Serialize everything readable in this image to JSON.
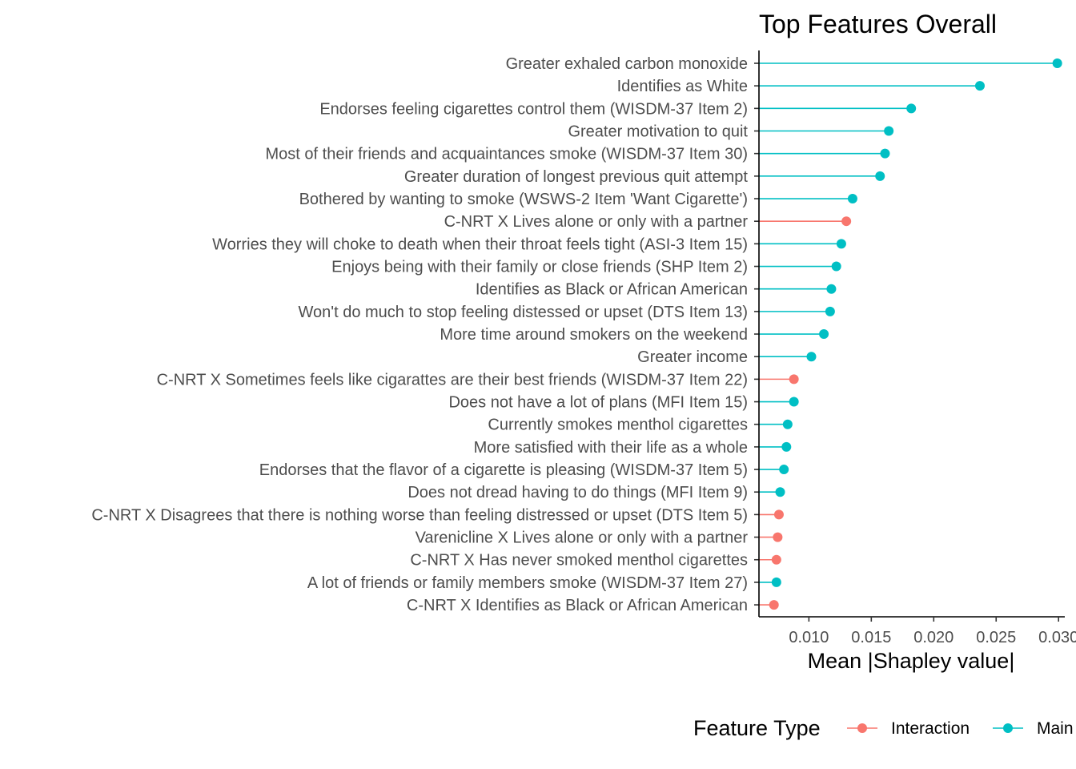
{
  "chart_data": {
    "type": "lollipop",
    "title": "Top Features Overall",
    "xlabel": "Mean |Shapley value|",
    "ylabel": "",
    "xlim": [
      0.006,
      0.0305
    ],
    "xticks": [
      0.01,
      0.015,
      0.02,
      0.025,
      0.03
    ],
    "xtick_labels": [
      "0.010",
      "0.015",
      "0.020",
      "0.025",
      "0.030"
    ],
    "grid": false,
    "legend": {
      "title": "Feature Type",
      "position": "bottom",
      "entries": [
        {
          "name": "Interaction",
          "color": "#F8766D"
        },
        {
          "name": "Main",
          "color": "#00BFC4"
        }
      ]
    },
    "colors": {
      "Interaction": "#F8766D",
      "Main": "#00BFC4"
    },
    "features": [
      {
        "label": "Greater exhaled carbon monoxide",
        "value": 0.0299,
        "type": "Main"
      },
      {
        "label": "Identifies as White",
        "value": 0.0237,
        "type": "Main"
      },
      {
        "label": "Endorses feeling cigarettes control them (WISDM-37 Item 2)",
        "value": 0.0182,
        "type": "Main"
      },
      {
        "label": "Greater motivation to quit",
        "value": 0.0164,
        "type": "Main"
      },
      {
        "label": "Most of their friends and acquaintances smoke (WISDM-37 Item 30)",
        "value": 0.0161,
        "type": "Main"
      },
      {
        "label": "Greater duration of longest previous quit attempt",
        "value": 0.0157,
        "type": "Main"
      },
      {
        "label": "Bothered by wanting to smoke (WSWS-2 Item 'Want Cigarette')",
        "value": 0.0135,
        "type": "Main"
      },
      {
        "label": "C-NRT X Lives alone or only with a partner",
        "value": 0.013,
        "type": "Interaction"
      },
      {
        "label": "Worries they will choke to death when their throat feels tight (ASI-3 Item 15)",
        "value": 0.0126,
        "type": "Main"
      },
      {
        "label": "Enjoys being with their family or close friends (SHP Item 2)",
        "value": 0.0122,
        "type": "Main"
      },
      {
        "label": "Identifies as Black or African American",
        "value": 0.0118,
        "type": "Main"
      },
      {
        "label": "Won't do much to stop feeling distessed or upset (DTS Item 13)",
        "value": 0.0117,
        "type": "Main"
      },
      {
        "label": "More time around smokers on the weekend",
        "value": 0.0112,
        "type": "Main"
      },
      {
        "label": "Greater income",
        "value": 0.0102,
        "type": "Main"
      },
      {
        "label": "C-NRT X Sometimes feels like cigarattes are their best friends (WISDM-37 Item 22)",
        "value": 0.0088,
        "type": "Interaction"
      },
      {
        "label": "Does not have a lot of plans (MFI Item 15)",
        "value": 0.0088,
        "type": "Main"
      },
      {
        "label": "Currently smokes menthol cigarettes",
        "value": 0.0083,
        "type": "Main"
      },
      {
        "label": "More satisfied with their life as a whole",
        "value": 0.0082,
        "type": "Main"
      },
      {
        "label": "Endorses that the flavor of a cigarette is pleasing (WISDM-37 Item 5)",
        "value": 0.008,
        "type": "Main"
      },
      {
        "label": "Does not dread having to do things (MFI Item 9)",
        "value": 0.0077,
        "type": "Main"
      },
      {
        "label": "C-NRT X Disagrees that there is nothing worse than feeling distressed or upset (DTS Item 5)",
        "value": 0.0076,
        "type": "Interaction"
      },
      {
        "label": "Varenicline X Lives alone or only with a partner",
        "value": 0.0075,
        "type": "Interaction"
      },
      {
        "label": "C-NRT X Has never smoked menthol cigarettes",
        "value": 0.0074,
        "type": "Interaction"
      },
      {
        "label": "A lot of friends or family members smoke (WISDM-37 Item 27)",
        "value": 0.0074,
        "type": "Main"
      },
      {
        "label": "C-NRT X Identifies as Black or African American",
        "value": 0.0072,
        "type": "Interaction"
      }
    ]
  }
}
